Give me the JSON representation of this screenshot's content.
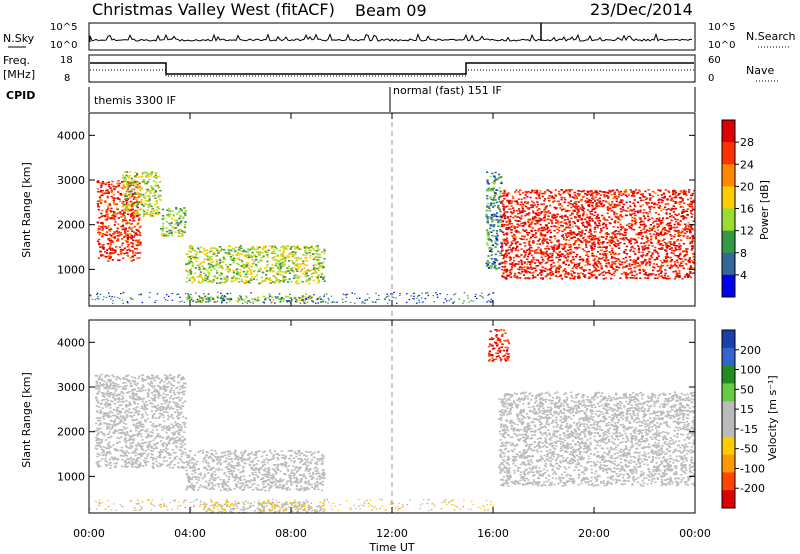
{
  "header": {
    "title": "Christmas Valley West (fitACF)",
    "beam": "Beam 09",
    "date": "23/Dec/2014"
  },
  "nsky_panel": {
    "left_label": "N.Sky",
    "right_label": "N.Search",
    "tick_top": "10^5",
    "tick_bottom": "10^0"
  },
  "freq_panel": {
    "left_label_1": "Freq.",
    "left_label_2": "[MHz]",
    "tick_top": "18",
    "tick_bottom": "8",
    "right_label": "Nave",
    "right_tick_top": "60",
    "right_tick_bottom": "0"
  },
  "cpid_panel": {
    "label": "CPID",
    "mode_1": "themis 3300 IF",
    "mode_2": "normal (fast) 151 IF"
  },
  "power_panel": {
    "ylabel": "Slant Range [km]",
    "cbar_label": "Power [dB]",
    "cbar_ticks": [
      "28",
      "24",
      "20",
      "16",
      "12",
      "8",
      "4"
    ]
  },
  "velocity_panel": {
    "ylabel": "Slant Range [km]",
    "cbar_label": "Velocity [m s⁻¹]",
    "cbar_ticks": [
      "200",
      "100",
      "50",
      "15",
      "-15",
      "-50",
      "-100",
      "-200"
    ]
  },
  "x_axis": {
    "label": "Time UT",
    "ticks": [
      "00:00",
      "04:00",
      "08:00",
      "12:00",
      "16:00",
      "20:00",
      "00:00"
    ]
  },
  "colors": {
    "power_scale": [
      "#e00000",
      "#ff3300",
      "#ff8800",
      "#ffcc00",
      "#99dd33",
      "#339944",
      "#336699",
      "#0000ee"
    ],
    "velocity_scale": [
      "#1c3fb0",
      "#3366cc",
      "#228b22",
      "#66cc44",
      "#bbbbbb",
      "#bbbbbb",
      "#ffcc00",
      "#ff9900",
      "#ff4400",
      "#dd0000"
    ]
  },
  "chart_data": [
    {
      "type": "heatmap",
      "panel": "power",
      "x_range_hours": [
        0,
        24
      ],
      "ylim": [
        180,
        4500
      ],
      "y_ticks": [
        1000,
        2000,
        3000,
        4000
      ],
      "color_range": [
        0,
        30
      ],
      "regions": [
        {
          "t": [
            0.3,
            2.0
          ],
          "r": [
            1200,
            3000
          ],
          "v": 26
        },
        {
          "t": [
            1.3,
            2.8
          ],
          "r": [
            2200,
            3200
          ],
          "v": 14
        },
        {
          "t": [
            2.8,
            3.8
          ],
          "r": [
            1750,
            2400
          ],
          "v": 12
        },
        {
          "t": [
            3.8,
            9.3
          ],
          "r": [
            700,
            1550
          ],
          "v": 14
        },
        {
          "t": [
            3.8,
            9.3
          ],
          "r": [
            280,
            420
          ],
          "v": 12
        },
        {
          "t": [
            15.7,
            16.3
          ],
          "r": [
            1000,
            3200
          ],
          "v": 8
        },
        {
          "t": [
            16.3,
            24.0
          ],
          "r": [
            800,
            2800
          ],
          "v": 27
        }
      ]
    },
    {
      "type": "heatmap",
      "panel": "velocity",
      "x_range_hours": [
        0,
        24
      ],
      "ylim": [
        180,
        4500
      ],
      "y_ticks": [
        1000,
        2000,
        3000,
        4000
      ],
      "color_range": [
        -250,
        250
      ],
      "regions": [
        {
          "t": [
            0.2,
            3.8
          ],
          "r": [
            1200,
            3300
          ],
          "v": 0
        },
        {
          "t": [
            3.8,
            9.3
          ],
          "r": [
            700,
            1600
          ],
          "v": 0
        },
        {
          "t": [
            4.5,
            9.3
          ],
          "r": [
            200,
            450
          ],
          "v": -40
        },
        {
          "t": [
            15.8,
            16.6
          ],
          "r": [
            3600,
            4300
          ],
          "v": -200
        },
        {
          "t": [
            16.2,
            24.0
          ],
          "r": [
            800,
            2900
          ],
          "v": 0
        }
      ]
    }
  ]
}
